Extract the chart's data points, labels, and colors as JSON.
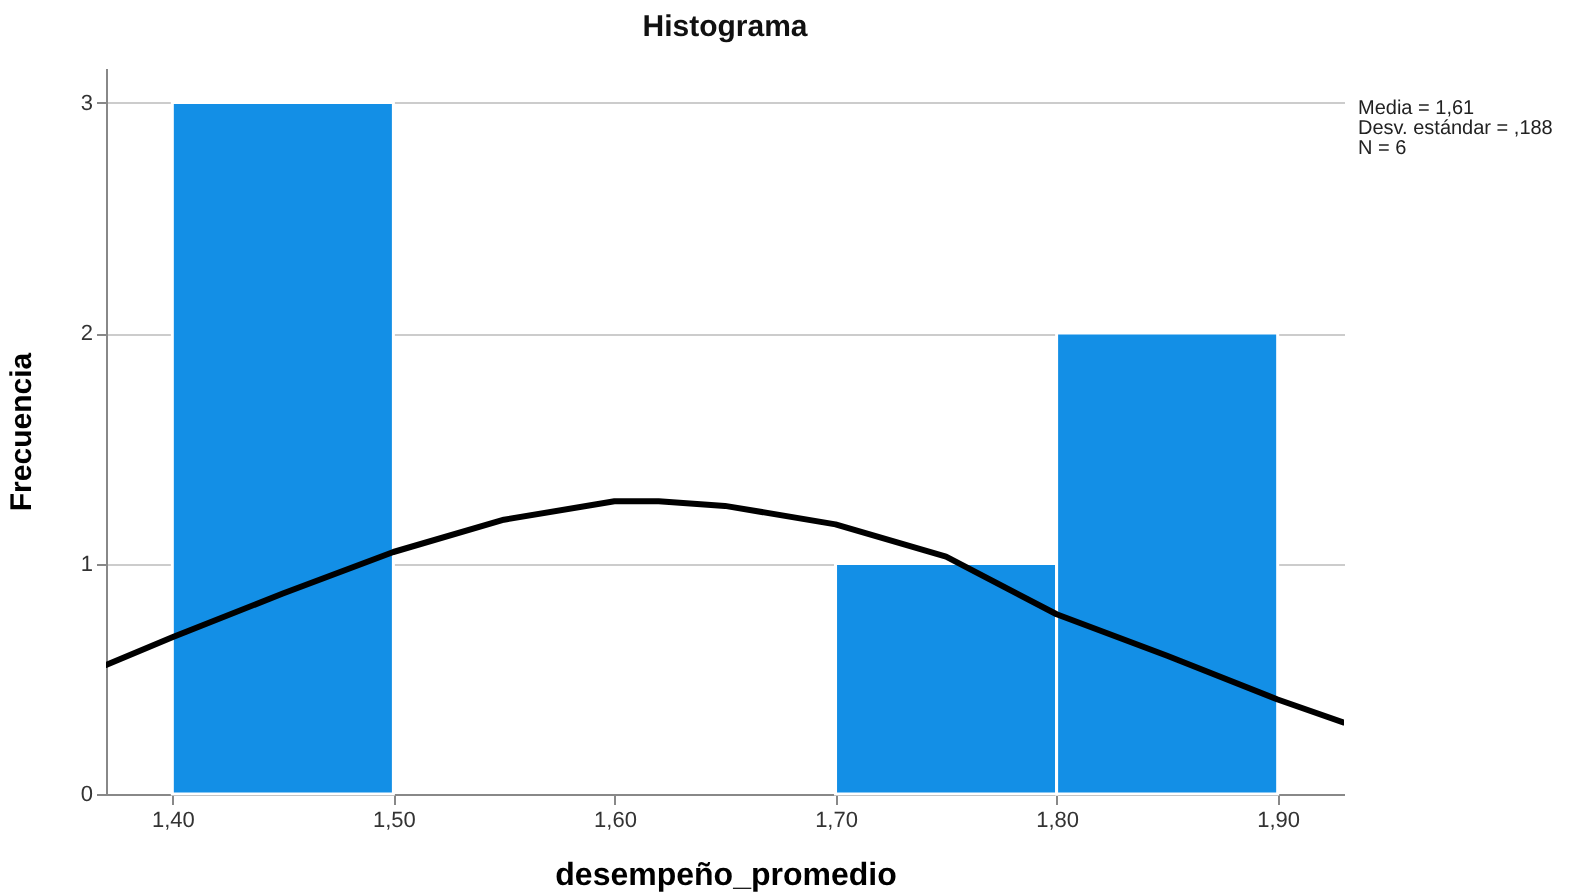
{
  "chart_data": {
    "type": "histogram",
    "title": "Histograma",
    "xlabel": "desempeño_promedio",
    "ylabel": "Frecuencia",
    "annotations": [
      "Media = 1,61",
      "Desv. estándar = ,188",
      "N = 6"
    ],
    "bins": [
      1.4,
      1.5,
      1.6,
      1.7,
      1.8,
      1.9
    ],
    "series": [
      {
        "color": "#138fe6",
        "values": [
          3,
          0,
          0,
          1,
          2
        ]
      },
      {
        "type": "line",
        "color": "#000000",
        "x": [
          1.37,
          1.4,
          1.45,
          1.5,
          1.55,
          1.6,
          1.62,
          1.65,
          1.7,
          1.75,
          1.8,
          1.85,
          1.9,
          1.93
        ],
        "values": [
          0.56,
          0.68,
          0.87,
          1.05,
          1.19,
          1.27,
          1.27,
          1.25,
          1.17,
          1.03,
          0.78,
          0.6,
          0.41,
          0.31
        ]
      }
    ],
    "xlim": [
      1.37,
      1.93
    ],
    "xticks": [
      {
        "value": 1.4,
        "label": "1,40"
      },
      {
        "value": 1.5,
        "label": "1,50"
      },
      {
        "value": 1.6,
        "label": "1,60"
      },
      {
        "value": 1.7,
        "label": "1,70"
      },
      {
        "value": 1.8,
        "label": "1,80"
      },
      {
        "value": 1.9,
        "label": "1,90"
      }
    ],
    "ylim": [
      0,
      3.15
    ],
    "yticks": [
      0,
      1,
      2,
      3
    ],
    "grid": "y"
  }
}
